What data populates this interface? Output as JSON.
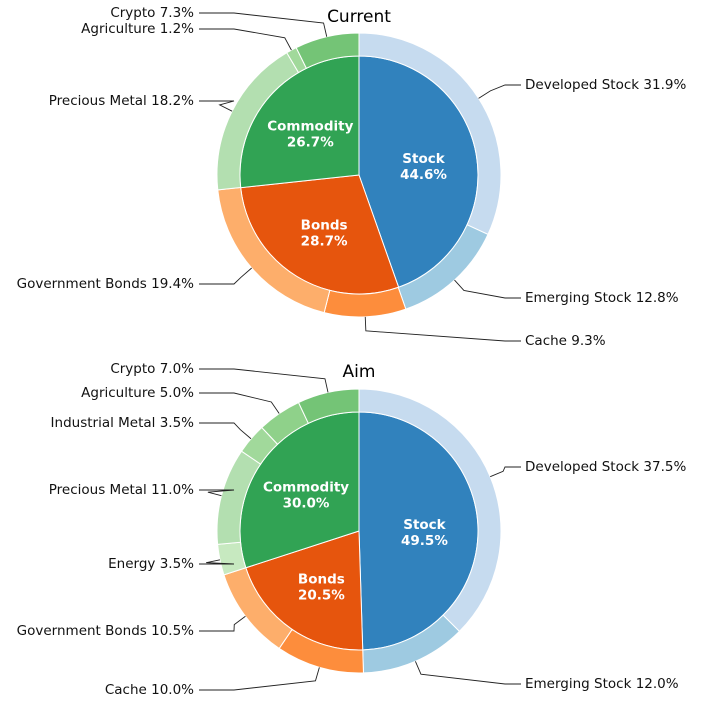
{
  "chart_data": [
    {
      "type": "pie",
      "title": "Current",
      "inner": [
        {
          "name": "Stock",
          "value": 44.6,
          "label": "Stock\n44.6%",
          "color": "#3182bd"
        },
        {
          "name": "Bonds",
          "value": 28.7,
          "label": "Bonds\n28.7%",
          "color": "#e6550d"
        },
        {
          "name": "Commodity",
          "value": 26.7,
          "label": "Commodity\n26.7%",
          "color": "#31a354"
        }
      ],
      "outer": [
        {
          "name": "Developed Stock",
          "value": 31.9,
          "label": "Developed Stock 31.9%",
          "color": "#c6dbef"
        },
        {
          "name": "Emerging Stock",
          "value": 12.8,
          "label": "Emerging Stock 12.8%",
          "color": "#9ecae1"
        },
        {
          "name": "Cache",
          "value": 9.3,
          "label": "Cache 9.3%",
          "color": "#fd8d3c"
        },
        {
          "name": "Government Bonds",
          "value": 19.4,
          "label": "Government Bonds 19.4%",
          "color": "#fdae6b"
        },
        {
          "name": "Precious Metal",
          "value": 18.2,
          "label": "Precious Metal 18.2%",
          "color": "#b3dfb0"
        },
        {
          "name": "Agriculture",
          "value": 1.2,
          "label": "Agriculture 1.2%",
          "color": "#a1d99b"
        },
        {
          "name": "Crypto",
          "value": 7.3,
          "label": "Crypto 7.3%",
          "color": "#74c476"
        }
      ]
    },
    {
      "type": "pie",
      "title": "Aim",
      "inner": [
        {
          "name": "Stock",
          "value": 49.5,
          "label": "Stock\n49.5%",
          "color": "#3182bd"
        },
        {
          "name": "Bonds",
          "value": 20.5,
          "label": "Bonds\n20.5%",
          "color": "#e6550d"
        },
        {
          "name": "Commodity",
          "value": 30.0,
          "label": "Commodity\n30.0%",
          "color": "#31a354"
        }
      ],
      "outer": [
        {
          "name": "Developed Stock",
          "value": 37.5,
          "label": "Developed Stock 37.5%",
          "color": "#c6dbef"
        },
        {
          "name": "Emerging Stock",
          "value": 12.0,
          "label": "Emerging Stock 12.0%",
          "color": "#9ecae1"
        },
        {
          "name": "Cache",
          "value": 10.0,
          "label": "Cache 10.0%",
          "color": "#fd8d3c"
        },
        {
          "name": "Government Bonds",
          "value": 10.5,
          "label": "Government Bonds 10.5%",
          "color": "#fdae6b"
        },
        {
          "name": "Energy",
          "value": 3.5,
          "label": "Energy 3.5%",
          "color": "#c7e9c0"
        },
        {
          "name": "Precious Metal",
          "value": 11.0,
          "label": "Precious Metal 11.0%",
          "color": "#b3dfb0"
        },
        {
          "name": "Industrial Metal",
          "value": 3.5,
          "label": "Industrial Metal 3.5%",
          "color": "#a1d99b"
        },
        {
          "name": "Agriculture",
          "value": 5.0,
          "label": "Agriculture 5.0%",
          "color": "#8fd18a"
        },
        {
          "name": "Crypto",
          "value": 7.0,
          "label": "Crypto 7.0%",
          "color": "#74c476"
        }
      ]
    }
  ]
}
